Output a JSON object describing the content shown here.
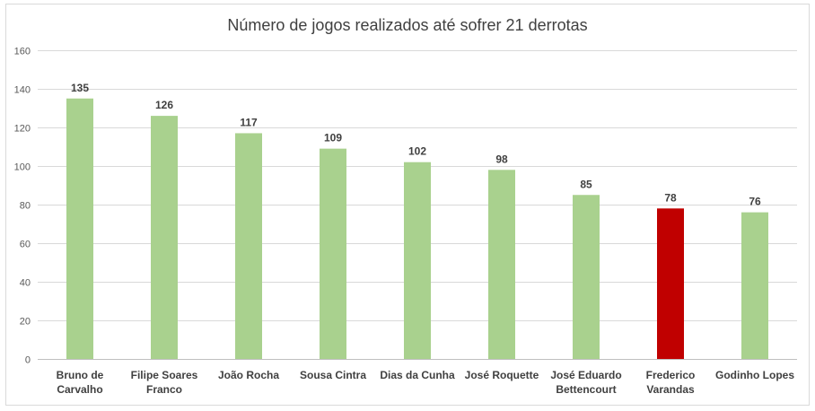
{
  "chart_data": {
    "type": "bar",
    "title": "Número de jogos realizados até sofrer 21 derrotas",
    "categories": [
      [
        "Bruno de",
        "Carvalho"
      ],
      [
        "Filipe Soares",
        "Franco"
      ],
      [
        "João Rocha"
      ],
      [
        "Sousa Cintra"
      ],
      [
        "Dias da Cunha"
      ],
      [
        "José Roquette"
      ],
      [
        "José Eduardo",
        "Bettencourt"
      ],
      [
        "Frederico",
        "Varandas"
      ],
      [
        "Godinho Lopes"
      ]
    ],
    "values": [
      135,
      126,
      117,
      109,
      102,
      98,
      85,
      78,
      76
    ],
    "bar_colors": [
      "#a9d18e",
      "#a9d18e",
      "#a9d18e",
      "#a9d18e",
      "#a9d18e",
      "#a9d18e",
      "#a9d18e",
      "#c00000",
      "#a9d18e"
    ],
    "ylim": [
      0,
      160
    ],
    "yticks": [
      0,
      20,
      40,
      60,
      80,
      100,
      120,
      140,
      160
    ],
    "grid": true,
    "xlabel": "",
    "ylabel": ""
  }
}
